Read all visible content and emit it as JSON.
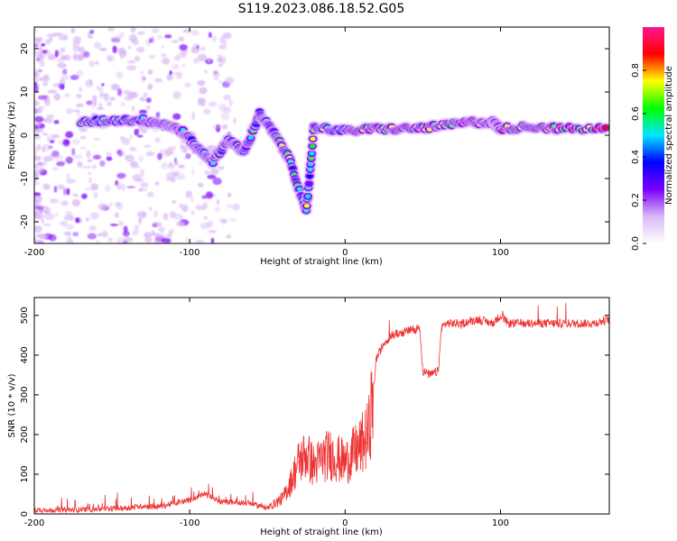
{
  "title": "S119.2023.086.18.52.G05",
  "chart_data": [
    {
      "type": "heatmap",
      "xlabel": "Height of straight line (km)",
      "ylabel": "Frequency (Hz)",
      "xlim": [
        -200,
        170
      ],
      "ylim": [
        -25,
        25
      ],
      "xticks": [
        -200,
        -100,
        0,
        100
      ],
      "yticks": [
        -20,
        -10,
        0,
        10,
        20
      ],
      "colorbar": {
        "label": "Normalized spectral amplitude",
        "range": [
          0,
          1
        ],
        "ticks": [
          "0.0",
          "0.2",
          "0.4",
          "0.6",
          "0.8"
        ],
        "colors": [
          "#ffffff",
          "#d9b8f5",
          "#7a00ff",
          "#0000ff",
          "#00e5ff",
          "#00ff00",
          "#ffff00",
          "#ff0000",
          "#ff1493"
        ]
      },
      "ridge": [
        {
          "x": -170,
          "y": 3
        },
        {
          "x": -150,
          "y": 3.5
        },
        {
          "x": -130,
          "y": 3.5
        },
        {
          "x": -115,
          "y": 2.5
        },
        {
          "x": -105,
          "y": 1
        },
        {
          "x": -95,
          "y": -3
        },
        {
          "x": -85,
          "y": -6
        },
        {
          "x": -75,
          "y": -1
        },
        {
          "x": -65,
          "y": -4
        },
        {
          "x": -55,
          "y": 5
        },
        {
          "x": -45,
          "y": 0
        },
        {
          "x": -35,
          "y": -6
        },
        {
          "x": -25,
          "y": -18
        },
        {
          "x": -20,
          "y": 2
        },
        {
          "x": 0,
          "y": 1
        },
        {
          "x": 20,
          "y": 1.5
        },
        {
          "x": 40,
          "y": 1.5
        },
        {
          "x": 60,
          "y": 2
        },
        {
          "x": 80,
          "y": 3
        },
        {
          "x": 95,
          "y": 3
        },
        {
          "x": 100,
          "y": 1.5
        },
        {
          "x": 120,
          "y": 2
        },
        {
          "x": 140,
          "y": 1.5
        },
        {
          "x": 170,
          "y": 1.5
        }
      ]
    },
    {
      "type": "line",
      "xlabel": "Height of straight line (km)",
      "ylabel": "SNR (10 * v/v)",
      "xlim": [
        -200,
        170
      ],
      "ylim": [
        0,
        545
      ],
      "xticks": [
        -200,
        -100,
        0,
        100
      ],
      "yticks": [
        0,
        100,
        200,
        300,
        400,
        500
      ],
      "color": "#ee3333",
      "series": [
        {
          "x": [
            -200,
            -180,
            -160,
            -140,
            -130,
            -120,
            -100,
            -90,
            -80,
            -70,
            -60,
            -50,
            -40,
            -35,
            -30,
            -25,
            -20,
            -15,
            -10,
            -5,
            0,
            5,
            10,
            15,
            18,
            20,
            25,
            30,
            40,
            48,
            50,
            55,
            60,
            62,
            65,
            75,
            85,
            95,
            100,
            105,
            120,
            140,
            160,
            170
          ],
          "y": [
            10,
            10,
            12,
            15,
            20,
            18,
            35,
            50,
            30,
            30,
            25,
            15,
            40,
            80,
            130,
            150,
            120,
            140,
            150,
            140,
            130,
            150,
            170,
            200,
            300,
            390,
            430,
            450,
            460,
            470,
            360,
            350,
            360,
            470,
            480,
            480,
            490,
            480,
            500,
            480,
            480,
            480,
            480,
            490
          ]
        }
      ]
    }
  ]
}
